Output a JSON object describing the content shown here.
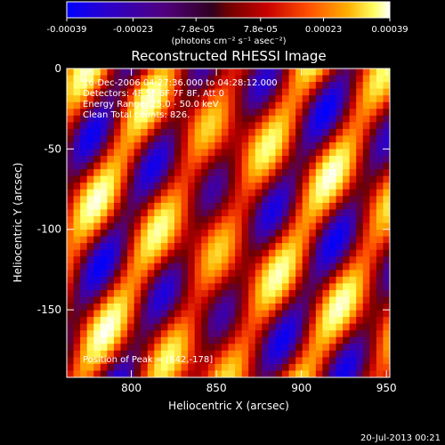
{
  "chart_data": {
    "type": "heatmap",
    "title": "Reconstructed RHESSI Image",
    "xlabel": "Heliocentric X (arcsec)",
    "ylabel": "Heliocentric Y (arcsec)",
    "xlim": [
      762,
      952
    ],
    "ylim": [
      -192,
      0
    ],
    "x_ticks": [
      "800",
      "850",
      "900",
      "950"
    ],
    "y_ticks": [
      "0",
      "-50",
      "-100",
      "-150"
    ],
    "colorbar": {
      "ticks": [
        "-0.00039",
        "-0.00023",
        "-7.8e-05",
        "7.8e-05",
        "0.00023",
        "0.00039"
      ],
      "label": "(photons cm⁻² s⁻¹ asec⁻²)",
      "range": [
        -0.00039,
        0.00039
      ],
      "colors": [
        "#0000ff",
        "#2a00cc",
        "#50007f",
        "#700000",
        "#c80000",
        "#ff5000",
        "#ffb000",
        "#ffff60",
        "#ffffff"
      ]
    },
    "annotations": [
      "16-Dec-2006 04:27:36.000 to 04:28:12.000",
      "Detectors: 4F 5F 6F 7F 8F, Att 0",
      "Energy Range: 25.0 - 50.0 keV",
      "Clean    Total counts: 826.",
      "Position of Peak = [842,-178]"
    ]
  },
  "footer": {
    "timestamp": "20-Jul-2013 00:21"
  }
}
